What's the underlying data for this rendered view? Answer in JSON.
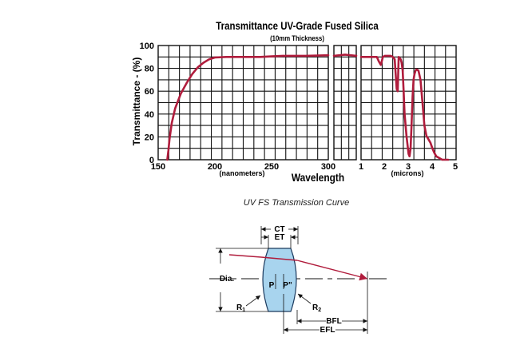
{
  "chart_data": {
    "type": "line",
    "title": "Transmittance UV-Grade Fused Silica",
    "subtitle": "(10mm Thickness)",
    "ylabel": "Transmittance - (%)",
    "xlabel": "Wavelength",
    "ylim": [
      0,
      100
    ],
    "y_ticks": [
      "0",
      "20",
      "40",
      "60",
      "80",
      "100"
    ],
    "grid": true,
    "line_color": "#b01c3c",
    "panels": [
      {
        "name": "uv",
        "unit_label": "(nanometers)",
        "xlim": [
          150,
          300
        ],
        "x_ticks": [
          "150",
          "200",
          "250",
          "300"
        ],
        "x": [
          158,
          159,
          160,
          162,
          165,
          170,
          175,
          180,
          185,
          190,
          195,
          200,
          210,
          220,
          230,
          240,
          250,
          260,
          280,
          300
        ],
        "y": [
          0,
          8,
          18,
          32,
          45,
          58,
          67,
          75,
          81,
          85,
          88,
          89.5,
          90,
          90,
          90,
          90,
          90.5,
          91,
          91,
          91.5
        ]
      },
      {
        "name": "visible",
        "unit_label": "",
        "xlim": [
          0,
          1
        ],
        "x_ticks": [],
        "x": [
          0,
          0.5,
          1
        ],
        "y": [
          91,
          92,
          91
        ]
      },
      {
        "name": "ir",
        "unit_label": "(microns)",
        "xlim": [
          0.2,
          5
        ],
        "x_ticks": [
          "1",
          "2",
          "3",
          "4",
          "5"
        ],
        "x": [
          0.2,
          0.5,
          0.8,
          1.0,
          1.1,
          1.2,
          1.3,
          1.4,
          1.5,
          1.6,
          1.7,
          1.8,
          1.9,
          2.0,
          2.05,
          2.1,
          2.2,
          2.25,
          2.3,
          2.35,
          2.4,
          2.5,
          2.6,
          2.65,
          2.7,
          2.75,
          2.8,
          2.85,
          2.9,
          2.95,
          3.0,
          3.1,
          3.2,
          3.3,
          3.4,
          3.5,
          3.6,
          3.7,
          3.8,
          3.9,
          4.0,
          4.3,
          4.6
        ],
        "y": [
          90,
          90,
          90,
          90,
          86,
          83,
          90,
          91,
          91,
          91,
          91,
          90,
          88,
          62,
          60,
          90,
          88,
          85,
          78,
          60,
          40,
          20,
          5,
          3,
          10,
          30,
          55,
          70,
          75,
          78,
          79,
          78,
          70,
          50,
          30,
          21,
          18,
          15,
          10,
          6,
          3,
          0,
          0
        ]
      }
    ]
  },
  "figure": {
    "caption": "UV FS Transmission Curve",
    "lens_color": "#a8d4ee",
    "ray_color": "#b01c3c"
  },
  "diagram": {
    "ct_label": "CT",
    "et_label": "ET",
    "dia_label": "Dia.",
    "p_label": "P",
    "p_prime_label": "P\"",
    "r1_label": "R",
    "r1_sub": "1",
    "r2_label": "R",
    "r2_sub": "2",
    "bfl_label": "BFL",
    "efl_label": "EFL"
  }
}
